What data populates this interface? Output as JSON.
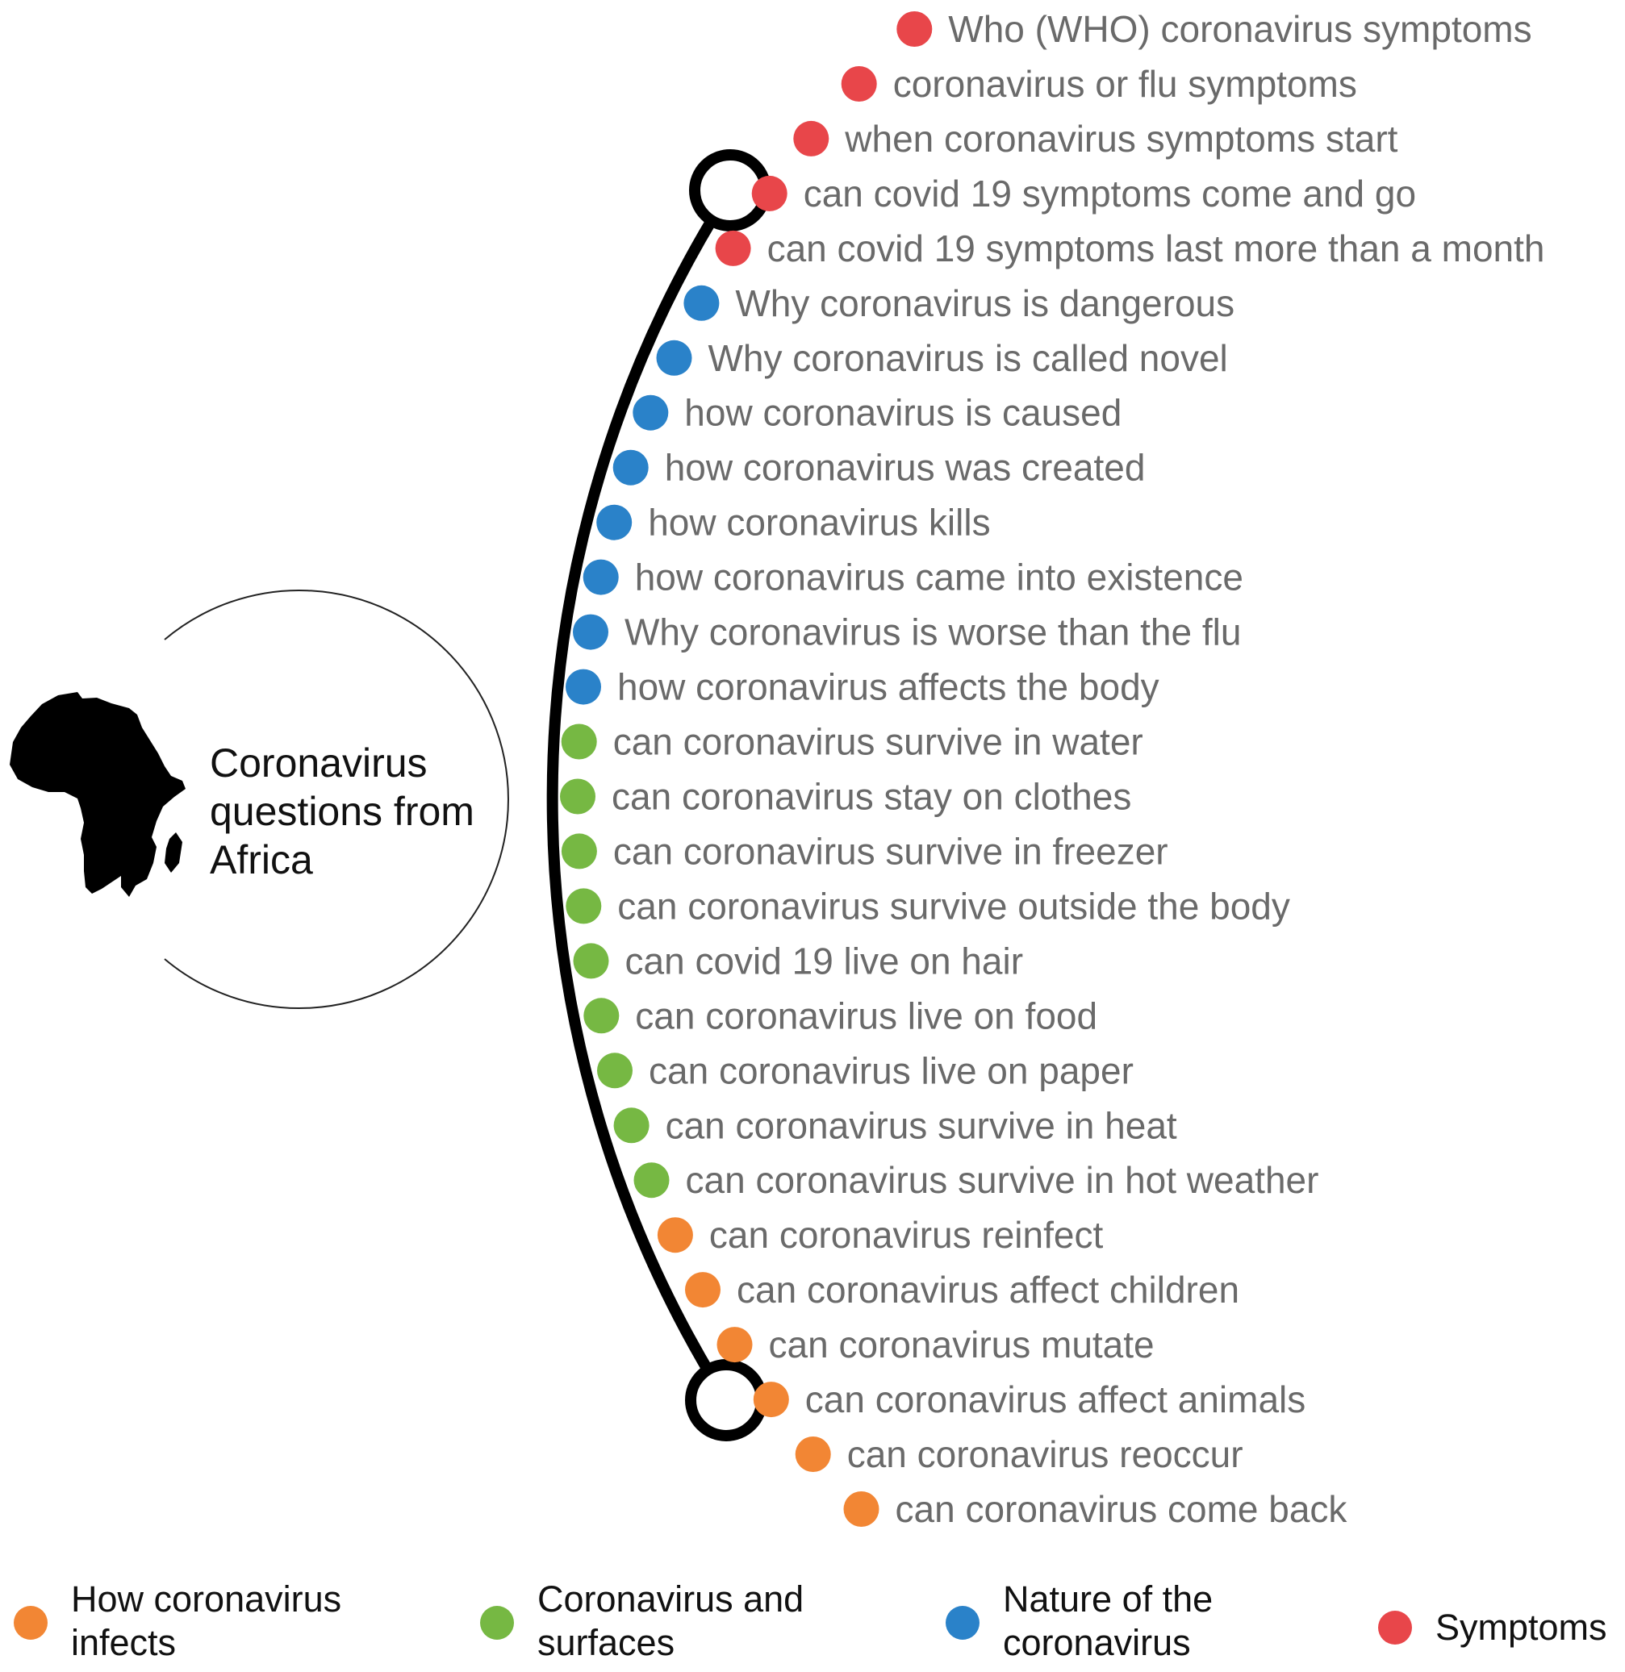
{
  "center": {
    "title_lines": [
      "Coronavirus",
      "questions from",
      "Africa"
    ],
    "icon": "africa-map-icon"
  },
  "colors": {
    "symptoms": "#e8464a",
    "nature": "#2a82c9",
    "surfaces": "#76b843",
    "infects": "#f28634"
  },
  "items": [
    {
      "text": "Who (WHO) coronavirus symptoms",
      "category": "symptoms"
    },
    {
      "text": "coronavirus or flu symptoms",
      "category": "symptoms"
    },
    {
      "text": "when coronavirus symptoms start",
      "category": "symptoms"
    },
    {
      "text": "can covid 19 symptoms come and go",
      "category": "symptoms"
    },
    {
      "text": "can covid 19 symptoms last more than a month",
      "category": "symptoms"
    },
    {
      "text": "Why coronavirus is dangerous",
      "category": "nature"
    },
    {
      "text": "Why coronavirus is called novel",
      "category": "nature"
    },
    {
      "text": "how coronavirus is caused",
      "category": "nature"
    },
    {
      "text": "how coronavirus was created",
      "category": "nature"
    },
    {
      "text": "how coronavirus kills",
      "category": "nature"
    },
    {
      "text": "how coronavirus came into existence",
      "category": "nature"
    },
    {
      "text": "Why coronavirus is worse than the flu",
      "category": "nature"
    },
    {
      "text": "how coronavirus affects the body",
      "category": "nature"
    },
    {
      "text": "can coronavirus survive in water",
      "category": "surfaces"
    },
    {
      "text": "can coronavirus stay on clothes",
      "category": "surfaces"
    },
    {
      "text": "can coronavirus survive in freezer",
      "category": "surfaces"
    },
    {
      "text": "can coronavirus survive outside the body",
      "category": "surfaces"
    },
    {
      "text": "can covid 19 live on hair",
      "category": "surfaces"
    },
    {
      "text": "can coronavirus live on food",
      "category": "surfaces"
    },
    {
      "text": "can coronavirus live on paper",
      "category": "surfaces"
    },
    {
      "text": "can coronavirus survive in heat",
      "category": "surfaces"
    },
    {
      "text": "can coronavirus survive in hot weather",
      "category": "surfaces"
    },
    {
      "text": "can coronavirus reinfect",
      "category": "infects"
    },
    {
      "text": "can coronavirus affect children",
      "category": "infects"
    },
    {
      "text": "can coronavirus mutate",
      "category": "infects"
    },
    {
      "text": "can coronavirus affect animals",
      "category": "infects"
    },
    {
      "text": "can coronavirus reoccur",
      "category": "infects"
    },
    {
      "text": "can coronavirus come back",
      "category": "infects"
    }
  ],
  "legend": [
    {
      "category": "infects",
      "lines": [
        "How coronavirus",
        "infects"
      ]
    },
    {
      "category": "surfaces",
      "lines": [
        "Coronavirus and",
        "surfaces"
      ]
    },
    {
      "category": "nature",
      "lines": [
        "Nature of the",
        "coronavirus"
      ]
    },
    {
      "category": "symptoms",
      "lines": [
        "Symptoms"
      ]
    }
  ]
}
